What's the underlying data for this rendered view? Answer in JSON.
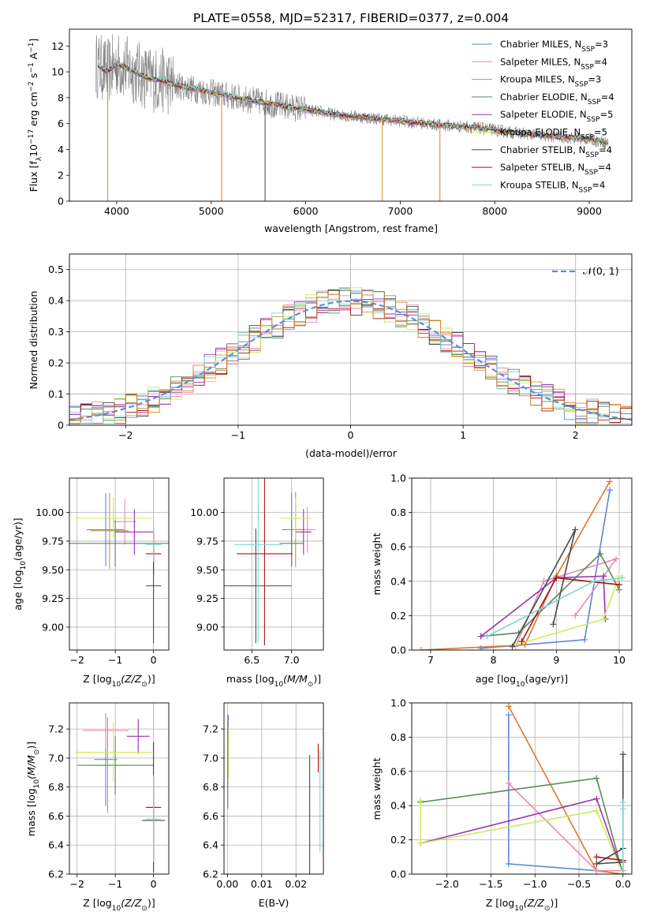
{
  "figure_title": "PLATE=0558, MJD=52317, FIBERID=0377, z=0.004",
  "colors": {
    "Chabrier MILES": "#5e87d6",
    "Salpeter MILES": "#e78ab4",
    "Kroupa MILES": "#c99a2e",
    "Chabrier ELODIE": "#5a8a5a",
    "Salpeter ELODIE": "#9b30b5",
    "Kroupa ELODIE": "#d2e85a",
    "Chabrier STELIB": "#4a4a4a",
    "Salpeter STELIB": "#a31515",
    "Kroupa STELIB": "#7fd6d6",
    "orange": "#e2772a",
    "normal": "#5b8fd6",
    "spectrum_gray": "#808080"
  },
  "chart_data": [
    {
      "id": "spectrum",
      "type": "line",
      "xlabel": "wavelength [Angstrom, rest frame]",
      "ylabel_main": "Flux [f",
      "ylabel_sub": "λ",
      "ylabel_rest": "10",
      "ylabel_exp": "−17",
      "ylabel_units": " erg cm",
      "ylabel_exp2": "−2",
      "ylabel_s": " s",
      "ylabel_exp3": "−1",
      "ylabel_A": " A",
      "ylabel_exp4": "−1",
      "ylabel_end": "]",
      "xlim": [
        3500,
        9450
      ],
      "ylim": [
        0,
        13.3
      ],
      "xticks": [
        4000,
        5000,
        6000,
        7000,
        8000,
        9000
      ],
      "yticks": [
        0,
        2,
        4,
        6,
        8,
        10,
        12
      ],
      "legend": [
        {
          "name": "Chabrier MILES",
          "n": "3"
        },
        {
          "name": "Salpeter MILES",
          "n": "4"
        },
        {
          "name": "Kroupa MILES",
          "n": "3"
        },
        {
          "name": "Chabrier ELODIE",
          "n": "4"
        },
        {
          "name": "Salpeter ELODIE",
          "n": "5"
        },
        {
          "name": "Kroupa ELODIE",
          "n": "5"
        },
        {
          "name": "Chabrier STELIB",
          "n": "4"
        },
        {
          "name": "Salpeter STELIB",
          "n": "4"
        },
        {
          "name": "Kroupa STELIB",
          "n": "4"
        }
      ],
      "legend_n_label": "N",
      "legend_n_sub": "SSP",
      "model_curve": {
        "x": [
          3800,
          3900,
          4000,
          4100,
          4200,
          4300,
          4400,
          4500,
          4600,
          4800,
          5000,
          5200,
          5500,
          5800,
          6000,
          6300,
          6600,
          7000,
          7400,
          7800,
          8200,
          8600,
          9000,
          9200
        ],
        "y": [
          10.5,
          10.0,
          10.6,
          10.3,
          10.0,
          9.6,
          9.4,
          9.3,
          9.0,
          8.7,
          8.4,
          8.1,
          7.7,
          7.3,
          7.1,
          6.7,
          6.5,
          6.2,
          5.9,
          5.7,
          5.3,
          5.0,
          4.8,
          4.5
        ]
      },
      "spikes": [
        {
          "x": 3905,
          "color": "Kroupa MILES"
        },
        {
          "x": 5110,
          "color": "orange"
        },
        {
          "x": 5570,
          "color": "Chabrier STELIB"
        },
        {
          "x": 6810,
          "color": "Kroupa MILES"
        },
        {
          "x": 7420,
          "color": "orange"
        }
      ]
    },
    {
      "id": "residuals",
      "type": "histogram",
      "xlabel": "(data-model)/error",
      "ylabel": "Normed distribution",
      "xlim": [
        -2.5,
        2.5
      ],
      "ylim": [
        0,
        0.55
      ],
      "xticks": [
        -2,
        -1,
        0,
        1,
        2
      ],
      "xtick_labels": [
        "−2",
        "−1",
        "0",
        "1",
        "2"
      ],
      "yticks": [
        0.0,
        0.1,
        0.2,
        0.3,
        0.4,
        0.5
      ],
      "bin_edges_start": -2.5,
      "bin_width": 0.1,
      "legend_label": "𝒩(0, 1)"
    },
    {
      "id": "age_vs_Z",
      "type": "scatter",
      "xlabel": "Z [log",
      "xlabel_sub": "10",
      "xlabel_rest": "(Z/Z",
      "xlabel_sun": "⊙",
      "xlabel_end": ")]",
      "ylabel": "age  [log",
      "ylabel_sub": "10",
      "ylabel_rest": "(age/yr)]",
      "xlim": [
        -2.2,
        0.4
      ],
      "ylim": [
        8.8,
        10.3
      ],
      "xticks": [
        -2,
        -1,
        0
      ],
      "xtick_labels": [
        "−2",
        "−1",
        "0"
      ],
      "yticks": [
        9.0,
        9.25,
        9.5,
        9.75,
        10.0
      ],
      "ytick_labels": [
        "9.00",
        "9.25",
        "9.50",
        "9.75",
        "10.00"
      ],
      "points": [
        {
          "model": "Chabrier MILES",
          "x": -1.25,
          "y": 9.85,
          "xe": 0.5,
          "ye": 0.32
        },
        {
          "model": "Salpeter MILES",
          "x": -0.75,
          "y": 9.92,
          "xe": 0.3,
          "ye": 0.2
        },
        {
          "model": "Kroupa MILES",
          "x": -1.15,
          "y": 9.84,
          "xe": 0.5,
          "ye": 0.33
        },
        {
          "model": "Chabrier ELODIE",
          "x": -1.0,
          "y": 9.73,
          "xe": 1.9,
          "ye": 0.2
        },
        {
          "model": "Salpeter ELODIE",
          "x": -0.5,
          "y": 9.83,
          "xe": 0.5,
          "ye": 0.2
        },
        {
          "model": "Kroupa ELODIE",
          "x": -1.05,
          "y": 9.95,
          "xe": 1.0,
          "ye": 0.18
        },
        {
          "model": "Chabrier STELIB",
          "x": 0.0,
          "y": 9.36,
          "xe": 0.2,
          "ye": 0.5
        },
        {
          "model": "Salpeter STELIB",
          "x": 0.0,
          "y": 9.64,
          "xe": 0.2,
          "ye": 0.18
        },
        {
          "model": "Kroupa STELIB",
          "x": 0.0,
          "y": 9.72,
          "xe": 0.2,
          "ye": 0.15
        }
      ]
    },
    {
      "id": "age_vs_mass",
      "type": "scatter",
      "xlabel": "mass [log",
      "xlabel_sub": "10",
      "xlabel_rest": "(M/M",
      "xlabel_sun": "⊙",
      "xlabel_end": ")]",
      "xlim": [
        6.15,
        7.4
      ],
      "ylim": [
        8.8,
        10.3
      ],
      "xticks": [
        6.5,
        7.0
      ],
      "xtick_labels": [
        "6.5",
        "7.0"
      ],
      "yticks": [
        9.0,
        9.25,
        9.5,
        9.75,
        10.0
      ],
      "ytick_labels": [
        "9.00",
        "9.25",
        "9.50",
        "9.75",
        "10.00"
      ],
      "points": [
        {
          "model": "Chabrier MILES",
          "x": 7.0,
          "y": 9.85,
          "xe": 0.12,
          "ye": 0.32
        },
        {
          "model": "Salpeter MILES",
          "x": 7.2,
          "y": 9.85,
          "xe": 0.1,
          "ye": 0.2
        },
        {
          "model": "Kroupa MILES",
          "x": 7.05,
          "y": 9.85,
          "xe": 0.1,
          "ye": 0.33
        },
        {
          "model": "Chabrier ELODIE",
          "x": 7.0,
          "y": 9.73,
          "xe": 0.15,
          "ye": 0.2
        },
        {
          "model": "Salpeter ELODIE",
          "x": 7.15,
          "y": 9.83,
          "xe": 0.1,
          "ye": 0.2
        },
        {
          "model": "Kroupa ELODIE",
          "x": 7.05,
          "y": 9.95,
          "xe": 0.2,
          "ye": 0.18
        },
        {
          "model": "Chabrier STELIB",
          "x": 6.55,
          "y": 9.36,
          "xe": 0.45,
          "ye": 0.5
        },
        {
          "model": "Salpeter STELIB",
          "x": 6.66,
          "y": 9.64,
          "xe": 0.35,
          "ye": 0.8
        },
        {
          "model": "Kroupa STELIB",
          "x": 6.58,
          "y": 9.72,
          "xe": 0.3,
          "ye": 0.85
        }
      ]
    },
    {
      "id": "mass_weight_vs_age",
      "type": "line",
      "xlabel": "age  [log",
      "xlabel_sub": "10",
      "xlabel_rest": "(age/yr)]",
      "ylabel": "mass weight",
      "xlim": [
        6.7,
        10.2
      ],
      "ylim": [
        0,
        1.0
      ],
      "xticks": [
        7,
        8,
        9,
        10
      ],
      "yticks": [
        0.0,
        0.2,
        0.4,
        0.6,
        0.8,
        1.0
      ],
      "ytick_labels": [
        "0.0",
        "0.2",
        "0.4",
        "0.6",
        "0.8",
        "1.0"
      ],
      "series": [
        {
          "model": "Chabrier MILES",
          "x": [
            7.8,
            9.45,
            9.85
          ],
          "y": [
            0.01,
            0.06,
            0.93
          ]
        },
        {
          "model": "Salpeter MILES",
          "x": [
            8.35,
            8.8,
            9.95,
            9.3
          ],
          "y": [
            0.02,
            0.4,
            0.53,
            0.2
          ]
        },
        {
          "model": "orange",
          "x": [
            6.85,
            8.5,
            9.0,
            9.85
          ],
          "y": [
            0.0,
            0.03,
            0.43,
            0.98
          ]
        },
        {
          "model": "Chabrier ELODIE",
          "x": [
            7.8,
            8.4,
            9.7,
            10.0
          ],
          "y": [
            0.08,
            0.1,
            0.56,
            0.35
          ]
        },
        {
          "model": "Salpeter ELODIE",
          "x": [
            7.8,
            9.0,
            9.75,
            9.78
          ],
          "y": [
            0.08,
            0.42,
            0.43,
            0.18
          ]
        },
        {
          "model": "Kroupa ELODIE",
          "x": [
            8.35,
            9.75,
            10.0
          ],
          "y": [
            0.03,
            0.18,
            0.43
          ]
        },
        {
          "model": "Chabrier STELIB",
          "x": [
            8.3,
            9.3,
            8.95
          ],
          "y": [
            0.02,
            0.7,
            0.15
          ]
        },
        {
          "model": "Salpeter STELIB",
          "x": [
            8.45,
            9.0,
            10.0
          ],
          "y": [
            0.05,
            0.42,
            0.38
          ]
        },
        {
          "model": "Kroupa STELIB",
          "x": [
            7.9,
            9.6,
            10.05
          ],
          "y": [
            0.08,
            0.4,
            0.42
          ]
        }
      ]
    },
    {
      "id": "mass_vs_Z",
      "type": "scatter",
      "xlabel": "Z [log",
      "xlabel_sub": "10",
      "xlabel_rest": "(Z/Z",
      "xlabel_sun": "⊙",
      "xlabel_end": ")]",
      "ylabel": "mass [log",
      "ylabel_sub": "10",
      "ylabel_rest": "(M/M",
      "ylabel_sun": "⊙",
      "ylabel_end": ")]",
      "xlim": [
        -2.2,
        0.4
      ],
      "ylim": [
        6.2,
        7.38
      ],
      "xticks": [
        -2,
        -1,
        0
      ],
      "xtick_labels": [
        "−2",
        "−1",
        "0"
      ],
      "yticks": [
        6.2,
        6.4,
        6.6,
        6.8,
        7.0,
        7.2
      ],
      "ytick_labels": [
        "6.2",
        "6.4",
        "6.6",
        "6.8",
        "7.0",
        "7.2"
      ],
      "points": [
        {
          "model": "Chabrier MILES",
          "x": -1.25,
          "y": 6.99,
          "xe": 0.3,
          "ye": 0.32
        },
        {
          "model": "Salpeter MILES",
          "x": -1.25,
          "y": 7.19,
          "xe": 0.6,
          "ye": 0.12
        },
        {
          "model": "Kroupa MILES",
          "x": -1.2,
          "y": 6.95,
          "xe": 0.5,
          "ye": 0.33
        },
        {
          "model": "Chabrier ELODIE",
          "x": -1.0,
          "y": 6.95,
          "xe": 1.0,
          "ye": 0.2
        },
        {
          "model": "Salpeter ELODIE",
          "x": -0.4,
          "y": 7.15,
          "xe": 0.3,
          "ye": 0.12
        },
        {
          "model": "Kroupa ELODIE",
          "x": -1.05,
          "y": 7.04,
          "xe": 1.0,
          "ye": 0.2
        },
        {
          "model": "Chabrier STELIB",
          "x": 0.0,
          "y": 6.57,
          "xe": 0.3,
          "ye": 0.3
        },
        {
          "model": "Salpeter STELIB",
          "x": 0.0,
          "y": 6.66,
          "xe": 0.2,
          "ye": 0.45
        },
        {
          "model": "Kroupa STELIB",
          "x": 0.0,
          "y": 6.58,
          "xe": 0.2,
          "ye": 0.3
        }
      ]
    },
    {
      "id": "mass_vs_ebv",
      "type": "scatter",
      "xlabel": "E(B-V)",
      "xlim": [
        -0.001,
        0.028
      ],
      "ylim": [
        6.2,
        7.38
      ],
      "xticks": [
        0.0,
        0.01,
        0.02
      ],
      "xtick_labels": [
        "0.00",
        "0.01",
        "0.02"
      ],
      "yticks": [
        6.2,
        6.4,
        6.6,
        6.8,
        7.0,
        7.2
      ],
      "ytick_labels": [
        "6.2",
        "6.4",
        "6.6",
        "6.8",
        "7.0",
        "7.2"
      ],
      "points": [
        {
          "model": "Salpeter ELODIE",
          "x": 0.0002,
          "y": 7.2,
          "xe": 0.0,
          "ye": 0.1
        },
        {
          "model": "Kroupa ELODIE",
          "x": 0.0003,
          "y": 7.04,
          "xe": 0.0,
          "ye": 0.18
        },
        {
          "model": "Chabrier ELODIE",
          "x": 0.0001,
          "y": 6.95,
          "xe": 0.0,
          "ye": 0.3
        },
        {
          "model": "Chabrier STELIB",
          "x": 0.024,
          "y": 6.57,
          "xe": 0.0,
          "ye": 0.45
        },
        {
          "model": "Salpeter STELIB",
          "x": 0.0265,
          "y": 7.0,
          "xe": 0.0,
          "ye": 0.1
        },
        {
          "model": "Kroupa STELIB",
          "x": 0.027,
          "y": 6.7,
          "xe": 0.0,
          "ye": 0.35
        }
      ]
    },
    {
      "id": "mass_weight_vs_Z",
      "type": "line",
      "xlabel": "Z [log",
      "xlabel_sub": "10",
      "xlabel_rest": "(Z/Z",
      "xlabel_sun": "⊙",
      "xlabel_end": ")]",
      "ylabel": "mass weight",
      "xlim": [
        -2.4,
        0.1
      ],
      "ylim": [
        0,
        1.0
      ],
      "xticks": [
        -2.0,
        -1.5,
        -1.0,
        -0.5,
        0.0
      ],
      "xtick_labels": [
        "−2.0",
        "−1.5",
        "−1.0",
        "−0.5",
        "0.0"
      ],
      "yticks": [
        0.0,
        0.2,
        0.4,
        0.6,
        0.8,
        1.0
      ],
      "ytick_labels": [
        "0.0",
        "0.2",
        "0.4",
        "0.6",
        "0.8",
        "1.0"
      ],
      "series": [
        {
          "model": "Chabrier MILES",
          "x": [
            -1.3,
            -1.3,
            -0.3,
            0.0
          ],
          "y": [
            0.93,
            0.06,
            0.02,
            0.0
          ]
        },
        {
          "model": "orange",
          "x": [
            -1.3,
            -0.3,
            0.0
          ],
          "y": [
            0.98,
            0.02,
            0.0
          ]
        },
        {
          "model": "Salpeter MILES",
          "x": [
            -1.3,
            -0.3,
            0.0
          ],
          "y": [
            0.53,
            0.02,
            0.02
          ]
        },
        {
          "model": "Chabrier ELODIE",
          "x": [
            -2.3,
            -0.3,
            0.0
          ],
          "y": [
            0.42,
            0.56,
            0.0
          ]
        },
        {
          "model": "Salpeter ELODIE",
          "x": [
            -2.3,
            -0.3,
            0.0
          ],
          "y": [
            0.18,
            0.44,
            0.0
          ]
        },
        {
          "model": "Kroupa ELODIE",
          "x": [
            -2.3,
            -2.3,
            -0.3,
            0.0
          ],
          "y": [
            0.43,
            0.18,
            0.37,
            0.0
          ]
        },
        {
          "model": "Chabrier STELIB",
          "x": [
            0.0,
            0.0,
            -0.3,
            0.0
          ],
          "y": [
            0.7,
            0.15,
            0.06,
            0.07
          ]
        },
        {
          "model": "Salpeter STELIB",
          "x": [
            -0.3,
            0.0,
            0.0
          ],
          "y": [
            0.1,
            0.08,
            0.0
          ]
        },
        {
          "model": "Kroupa STELIB",
          "x": [
            0.0,
            0.0,
            0.0
          ],
          "y": [
            0.42,
            0.38,
            0.0
          ]
        }
      ]
    }
  ]
}
